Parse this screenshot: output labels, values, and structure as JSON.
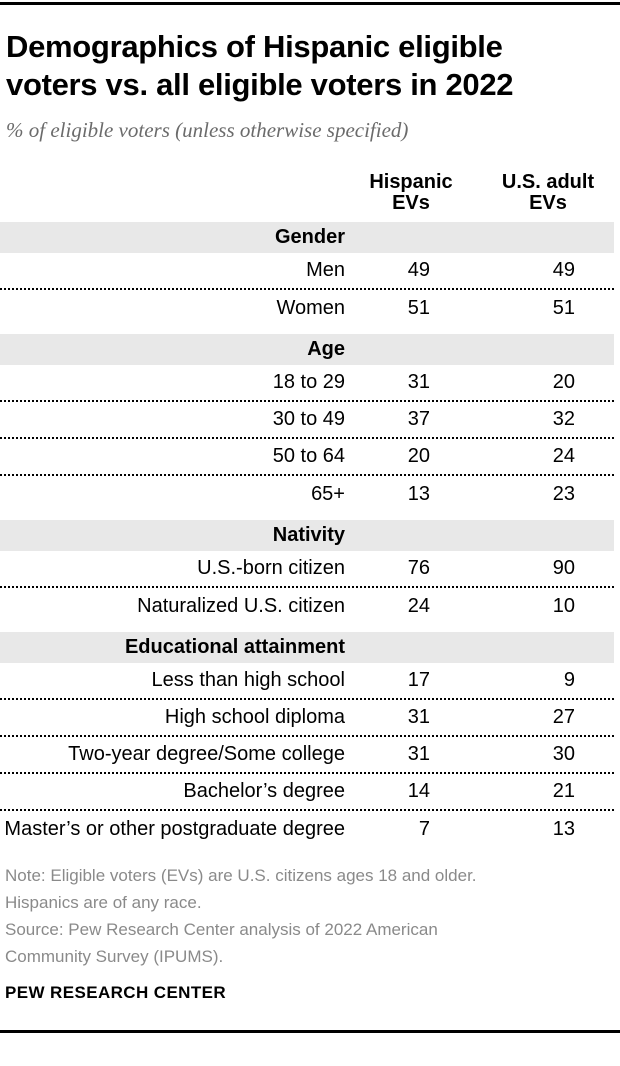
{
  "title": {
    "line1": "Demographics of Hispanic eligible",
    "line2": "voters vs. all eligible voters in 2022"
  },
  "subtitle": "% of eligible voters (unless otherwise specified)",
  "columns": [
    {
      "line1": "Hispanic",
      "line2": "EVs"
    },
    {
      "line1": "U.S. adult",
      "line2": "EVs"
    }
  ],
  "chart_data": {
    "type": "table",
    "title": "Demographics of Hispanic eligible voters vs. all eligible voters in 2022",
    "subtitle": "% of eligible voters (unless otherwise specified)",
    "columns": [
      "Hispanic EVs",
      "U.S. adult EVs"
    ],
    "sections": [
      {
        "header": "Gender",
        "rows": [
          {
            "label": "Men",
            "values": [
              49,
              49
            ]
          },
          {
            "label": "Women",
            "values": [
              51,
              51
            ]
          }
        ]
      },
      {
        "header": "Age",
        "rows": [
          {
            "label": "18 to 29",
            "values": [
              31,
              20
            ]
          },
          {
            "label": "30 to 49",
            "values": [
              37,
              32
            ]
          },
          {
            "label": "50 to 64",
            "values": [
              20,
              24
            ]
          },
          {
            "label": "65+",
            "values": [
              13,
              23
            ]
          }
        ]
      },
      {
        "header": "Nativity",
        "rows": [
          {
            "label": "U.S.-born citizen",
            "values": [
              76,
              90
            ]
          },
          {
            "label": "Naturalized U.S. citizen",
            "values": [
              24,
              10
            ]
          }
        ]
      },
      {
        "header": "Educational attainment",
        "rows": [
          {
            "label": "Less than high school",
            "values": [
              17,
              9
            ]
          },
          {
            "label": "High school diploma",
            "values": [
              31,
              27
            ]
          },
          {
            "label": "Two-year degree/Some college",
            "values": [
              31,
              30
            ]
          },
          {
            "label": "Bachelor’s degree",
            "values": [
              14,
              21
            ]
          },
          {
            "label": "Master’s or other postgraduate degree",
            "values": [
              7,
              13
            ]
          }
        ]
      }
    ]
  },
  "note_lines": [
    "Note: Eligible voters (EVs) are U.S. citizens ages 18 and older.",
    "Hispanics are of any race."
  ],
  "source_lines": [
    "Source: Pew Research Center analysis of 2022 American",
    "Community Survey (IPUMS)."
  ],
  "attribution": "PEW RESEARCH CENTER",
  "colors": {
    "section_band_bg": "#e8e8e8",
    "note_text": "#8a8a8a",
    "subtitle_text": "#6b6b6b",
    "rule": "#000000"
  }
}
